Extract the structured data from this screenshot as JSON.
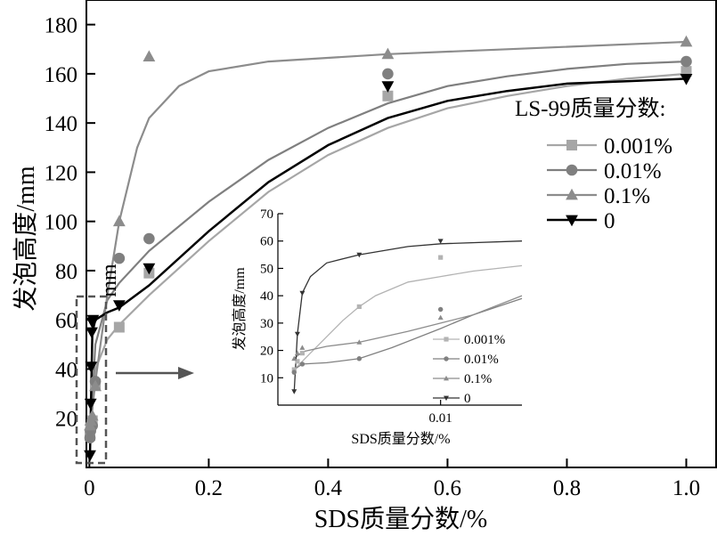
{
  "chart_data": [
    {
      "type": "scatter",
      "title": "",
      "xlabel": "SDS质量分数/%",
      "ylabel": "发泡高度/mm",
      "xlim": [
        -0.005,
        1.05
      ],
      "ylim": [
        0,
        190
      ],
      "xticks": [
        "0",
        "0.2",
        "0.4",
        "0.6",
        "0.8",
        "1.0"
      ],
      "xtick_values": [
        0,
        0.2,
        0.4,
        0.6,
        0.8,
        1.0
      ],
      "yticks": [
        "20",
        "40",
        "60",
        "80",
        "100",
        "120",
        "140",
        "160",
        "180"
      ],
      "ytick_values": [
        20,
        40,
        60,
        80,
        100,
        120,
        140,
        160,
        180
      ],
      "legend_title": "LS-99质量分数:",
      "legend_position": "right",
      "stray_text": "mm",
      "series": [
        {
          "name": "0.001%",
          "marker": "square",
          "color": "#a6a6a6",
          "x": [
            0.001,
            0.002,
            0.005,
            0.01,
            0.05,
            0.1,
            0.5,
            1.0
          ],
          "y": [
            13,
            16,
            19,
            34,
            57,
            79,
            151,
            161
          ],
          "curve_x": [
            0.001,
            0.01,
            0.03,
            0.05,
            0.1,
            0.2,
            0.3,
            0.4,
            0.5,
            0.6,
            0.7,
            0.8,
            0.9,
            1.0
          ],
          "curve_y": [
            12,
            40,
            52,
            58,
            70,
            92,
            112,
            127,
            138,
            146,
            151,
            155,
            158,
            160
          ]
        },
        {
          "name": "0.01%",
          "marker": "circle",
          "color": "#7f7f7f",
          "x": [
            0.001,
            0.002,
            0.005,
            0.01,
            0.05,
            0.1,
            0.5,
            1.0
          ],
          "y": [
            12,
            15,
            17,
            35,
            85,
            93,
            160,
            165
          ],
          "curve_x": [
            0.001,
            0.01,
            0.03,
            0.05,
            0.1,
            0.2,
            0.3,
            0.4,
            0.5,
            0.6,
            0.7,
            0.8,
            0.9,
            1.0
          ],
          "curve_y": [
            12,
            50,
            68,
            75,
            88,
            108,
            125,
            138,
            148,
            155,
            159,
            162,
            164,
            165
          ]
        },
        {
          "name": "0.1%",
          "marker": "triangle-up",
          "color": "#8c8c8c",
          "x": [
            0.001,
            0.002,
            0.005,
            0.01,
            0.05,
            0.1,
            0.5,
            1.0
          ],
          "y": [
            17,
            19,
            21,
            33,
            100,
            167,
            168,
            173
          ],
          "curve_x": [
            0.001,
            0.01,
            0.03,
            0.05,
            0.08,
            0.1,
            0.15,
            0.2,
            0.3,
            0.5,
            0.7,
            1.0
          ],
          "curve_y": [
            15,
            35,
            70,
            100,
            130,
            142,
            155,
            161,
            165,
            168,
            170,
            173
          ]
        },
        {
          "name": "0",
          "marker": "triangle-down",
          "color": "#000000",
          "x": [
            0.001,
            0.002,
            0.003,
            0.004,
            0.005,
            0.006,
            0.05,
            0.1,
            0.5,
            1.0
          ],
          "y": [
            5,
            26,
            41,
            55,
            59,
            60,
            66,
            81,
            155,
            158
          ],
          "curve_x": [
            0.001,
            0.005,
            0.01,
            0.03,
            0.05,
            0.1,
            0.2,
            0.3,
            0.4,
            0.5,
            0.6,
            0.7,
            0.8,
            0.9,
            1.0
          ],
          "curve_y": [
            5,
            55,
            60,
            63,
            65,
            74,
            96,
            116,
            131,
            142,
            149,
            153,
            156,
            157,
            158
          ]
        }
      ]
    },
    {
      "type": "scatter",
      "title": "",
      "xlabel": "SDS质量分数/%",
      "ylabel": "发泡高度/mm",
      "xlim": [
        0,
        0.015
      ],
      "ylim": [
        0,
        70
      ],
      "xticks": [
        "0.01"
      ],
      "xtick_values": [
        0.01
      ],
      "yticks": [
        "10",
        "20",
        "30",
        "40",
        "50",
        "60",
        "70"
      ],
      "ytick_values": [
        10,
        20,
        30,
        40,
        50,
        60,
        70
      ],
      "legend_position": "bottom-right",
      "series": [
        {
          "name": "0.001%",
          "marker": "square",
          "color": "#b3b3b3",
          "x": [
            0.001,
            0.0012,
            0.0015,
            0.005,
            0.01
          ],
          "y": [
            13,
            16,
            19,
            36,
            54
          ],
          "curve_x": [
            0.001,
            0.002,
            0.003,
            0.004,
            0.005,
            0.006,
            0.008,
            0.01,
            0.012,
            0.015
          ],
          "curve_y": [
            13,
            19,
            25,
            31,
            36,
            40,
            45,
            47,
            49,
            51
          ]
        },
        {
          "name": "0.01%",
          "marker": "circle",
          "color": "#808080",
          "x": [
            0.001,
            0.0015,
            0.005,
            0.01
          ],
          "y": [
            12,
            15,
            17,
            35
          ],
          "curve_x": [
            0.001,
            0.0015,
            0.003,
            0.005,
            0.007,
            0.01,
            0.012,
            0.015
          ],
          "curve_y": [
            13,
            15,
            15.5,
            17,
            21,
            28,
            33,
            39
          ]
        },
        {
          "name": "0.1%",
          "marker": "triangle-up",
          "color": "#8c8c8c",
          "x": [
            0.001,
            0.0012,
            0.0015,
            0.005,
            0.01
          ],
          "y": [
            17,
            19,
            21,
            23,
            32
          ],
          "curve_x": [
            0.001,
            0.0015,
            0.003,
            0.005,
            0.008,
            0.01,
            0.012,
            0.015
          ],
          "curve_y": [
            17,
            19.5,
            21.5,
            23,
            27,
            30,
            33,
            40
          ]
        },
        {
          "name": "0",
          "marker": "triangle-down",
          "color": "#333333",
          "x": [
            0.001,
            0.0012,
            0.0015,
            0.005,
            0.01
          ],
          "y": [
            5,
            26,
            41,
            55,
            60
          ],
          "curve_x": [
            0.001,
            0.0012,
            0.0015,
            0.002,
            0.003,
            0.005,
            0.008,
            0.01,
            0.015
          ],
          "curve_y": [
            5,
            26,
            41,
            47,
            52,
            55,
            58,
            59,
            60
          ]
        }
      ]
    }
  ]
}
